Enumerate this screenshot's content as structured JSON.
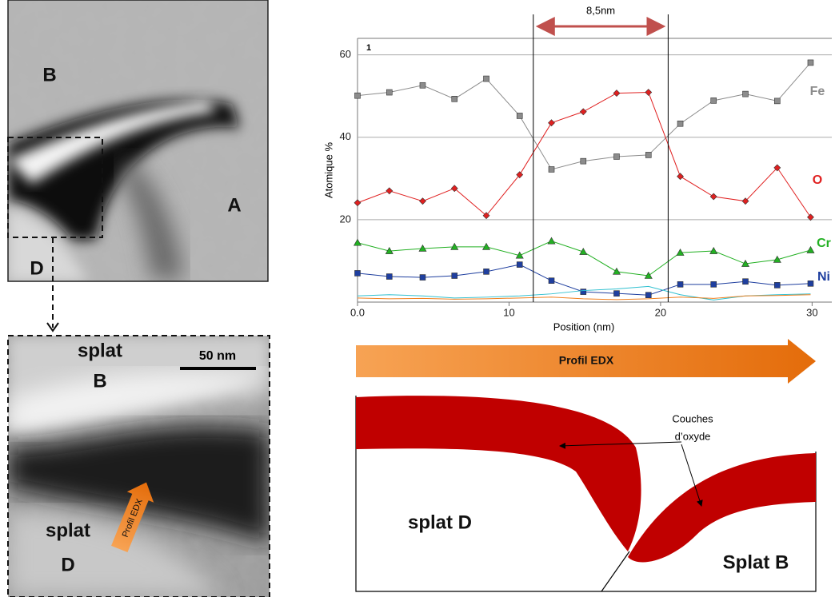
{
  "chart_data": {
    "type": "line",
    "panel_label": "1",
    "y_label": "Atomique %",
    "x_label": "Position (nm)",
    "x": [
      0,
      2.1,
      4.3,
      6.4,
      8.5,
      10.7,
      12.8,
      14.9,
      17.1,
      19.2,
      21.3,
      23.5,
      25.6,
      27.7,
      29.9
    ],
    "series": [
      {
        "name": "Fe",
        "color": "#8c8c8c",
        "marker": "square",
        "values": [
          50.1,
          50.9,
          52.6,
          49.3,
          54.2,
          45.2,
          32.2,
          34.2,
          35.3,
          35.7,
          43.3,
          48.9,
          50.5,
          48.8,
          58.1
        ]
      },
      {
        "name": "O",
        "color": "#e02020",
        "marker": "diamond",
        "values": [
          24.1,
          27.0,
          24.5,
          27.6,
          21.0,
          30.9,
          43.5,
          46.2,
          50.7,
          50.9,
          30.5,
          25.6,
          24.5,
          32.6,
          20.6
        ]
      },
      {
        "name": "Cr",
        "color": "#22b022",
        "marker": "triangle",
        "values": [
          14.4,
          12.4,
          13.0,
          13.4,
          13.4,
          11.3,
          14.8,
          12.2,
          7.4,
          6.4,
          12.0,
          12.4,
          9.3,
          10.3,
          12.6
        ]
      },
      {
        "name": "Ni",
        "color": "#1f3f9f",
        "marker": "square",
        "values": [
          7.0,
          6.2,
          6.0,
          6.4,
          7.4,
          9.1,
          5.2,
          2.5,
          2.1,
          1.7,
          4.3,
          4.3,
          5.0,
          4.1,
          4.5
        ]
      },
      {
        "color": "#30c0d0",
        "values": [
          1.5,
          1.8,
          1.5,
          1.0,
          1.2,
          1.5,
          2.0,
          2.8,
          3.2,
          3.8,
          1.8,
          0.5,
          1.5,
          1.8,
          2.0
        ]
      },
      {
        "color": "#f08020",
        "values": [
          1.0,
          0.8,
          0.9,
          0.7,
          0.8,
          1.0,
          1.2,
          0.8,
          0.6,
          0.8,
          1.2,
          0.9,
          1.5,
          1.6,
          1.8
        ]
      }
    ],
    "xlim": [
      0,
      31.3
    ],
    "ylim": [
      0,
      64
    ],
    "xticks": [
      {
        "value": 0,
        "label": "0.0"
      },
      10,
      20,
      30
    ],
    "yticks": [
      20,
      40,
      60
    ],
    "grid": true,
    "annotation": {
      "text": "8,5nm",
      "x": [
        11.6,
        20.5
      ],
      "color": "#c0504d"
    }
  },
  "micrographs": {
    "overview": {
      "labels": [
        "B",
        "A",
        "D"
      ]
    },
    "zoom": {
      "splat_b": [
        "splat",
        "B"
      ],
      "splat_d": [
        "splat",
        "D"
      ],
      "scale_bar": "50 nm",
      "arrow": "Profil EDX"
    }
  },
  "profile_arrow": "Profil EDX",
  "diagram": {
    "splat_d": "splat D",
    "splat_b": "Splat B",
    "oxide_layers": [
      "Couches",
      "d’oxyde"
    ]
  }
}
